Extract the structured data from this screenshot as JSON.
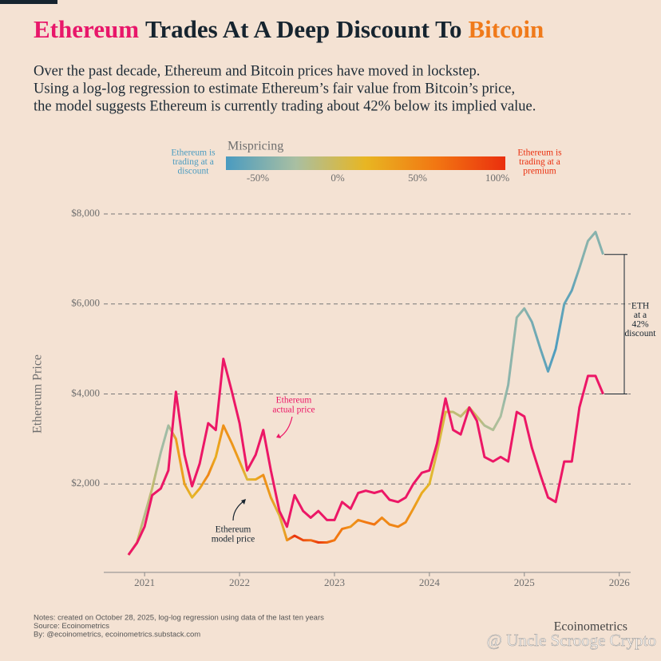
{
  "chart_data": {
    "type": "line",
    "title": [
      {
        "text": "Ethereum",
        "color": "#e8176a"
      },
      {
        "text": "Trades At A Deep Discount To",
        "color": "#16242f"
      },
      {
        "text": "Bitcoin",
        "color": "#f07a1a"
      }
    ],
    "subtitle": [
      "Over the past decade, Ethereum and Bitcoin prices have moved in lockstep.",
      "Using a log-log regression to estimate Ethereum’s fair value from Bitcoin’s price,",
      "the model suggests Ethereum is currently trading about 42% below its implied value."
    ],
    "y_label": "Ethereum Price",
    "x": [
      2020.83,
      2020.92,
      2021.0,
      2021.08,
      2021.17,
      2021.25,
      2021.33,
      2021.42,
      2021.5,
      2021.58,
      2021.67,
      2021.75,
      2021.83,
      2021.92,
      2022.0,
      2022.08,
      2022.17,
      2022.25,
      2022.33,
      2022.42,
      2022.5,
      2022.58,
      2022.67,
      2022.75,
      2022.83,
      2022.92,
      2023.0,
      2023.08,
      2023.17,
      2023.25,
      2023.33,
      2023.42,
      2023.5,
      2023.58,
      2023.67,
      2023.75,
      2023.83,
      2023.92,
      2024.0,
      2024.08,
      2024.17,
      2024.25,
      2024.33,
      2024.42,
      2024.5,
      2024.58,
      2024.67,
      2024.75,
      2024.83,
      2024.92,
      2025.0,
      2025.08,
      2025.17,
      2025.25,
      2025.33,
      2025.42,
      2025.5,
      2025.58,
      2025.67,
      2025.75,
      2025.83
    ],
    "series": [
      {
        "name": "Ethereum model price",
        "color": "gradient",
        "values": [
          420,
          700,
          1300,
          1900,
          2700,
          3300,
          3000,
          2000,
          1700,
          1900,
          2200,
          2600,
          3300,
          2900,
          2500,
          2100,
          2100,
          2200,
          1700,
          1300,
          750,
          850,
          750,
          750,
          700,
          700,
          750,
          1000,
          1050,
          1200,
          1150,
          1100,
          1250,
          1100,
          1050,
          1150,
          1450,
          1800,
          2000,
          2700,
          3600,
          3600,
          3500,
          3700,
          3500,
          3300,
          3200,
          3500,
          4200,
          5700,
          5900,
          5600,
          5000,
          4500,
          5000,
          6000,
          6300,
          6800,
          7400,
          7600,
          7100
        ]
      },
      {
        "name": "Ethereum actual price",
        "color": "#ec1766",
        "values": [
          425,
          690,
          1050,
          1750,
          1900,
          2300,
          4050,
          2650,
          1950,
          2450,
          3350,
          3200,
          4780,
          4050,
          3350,
          2300,
          2650,
          3200,
          2300,
          1400,
          1050,
          1750,
          1400,
          1250,
          1400,
          1200,
          1200,
          1600,
          1450,
          1800,
          1850,
          1800,
          1850,
          1650,
          1600,
          1700,
          2000,
          2250,
          2300,
          2900,
          3900,
          3200,
          3100,
          3700,
          3400,
          2600,
          2500,
          2600,
          2500,
          3600,
          3500,
          2800,
          2200,
          1700,
          1600,
          2500,
          2500,
          3700,
          4400,
          4400,
          4000
        ]
      }
    ],
    "xlim": [
      2020.57,
      2026.12
    ],
    "xticks": [
      2021,
      2022,
      2023,
      2024,
      2025,
      2026
    ],
    "ylim": [
      0,
      8000
    ],
    "yticks": [
      {
        "value": 2000,
        "label": "$2,000"
      },
      {
        "value": 4000,
        "label": "$4,000"
      },
      {
        "value": 6000,
        "label": "$6,000"
      },
      {
        "value": 8000,
        "label": "$8,000"
      }
    ],
    "grid": true,
    "colorbar": {
      "title": "Mispricing",
      "lim": [
        -70,
        105
      ],
      "colors": [
        "#4a9bc0",
        "#a9bfa2",
        "#e8b622",
        "#f27712",
        "#ea2f0e"
      ],
      "ticks": [
        {
          "value": -50,
          "label": "-50%"
        },
        {
          "value": 0,
          "label": "0%"
        },
        {
          "value": 50,
          "label": "50%"
        },
        {
          "value": 100,
          "label": "100%"
        }
      ],
      "left_label": [
        "Ethereum is",
        "trading at a",
        "discount"
      ],
      "right_label": [
        "Ethereum is",
        "trading at a",
        "premium"
      ]
    },
    "actual_label": [
      "Ethereum",
      "actual price"
    ],
    "model_label": [
      "Ethereum",
      "model price"
    ],
    "discount_label": [
      "ETH",
      "at a",
      "42%",
      "discount"
    ],
    "notes": [
      "Notes: created on October 28, 2025, log-log regression using data of the last ten years",
      "Source: Ecoinometrics",
      "By: @ecoinometrics, ecoinometrics.substack.com"
    ],
    "brand": "Ecoinometrics",
    "watermark": "@ Uncle Scrooge Crypto"
  }
}
